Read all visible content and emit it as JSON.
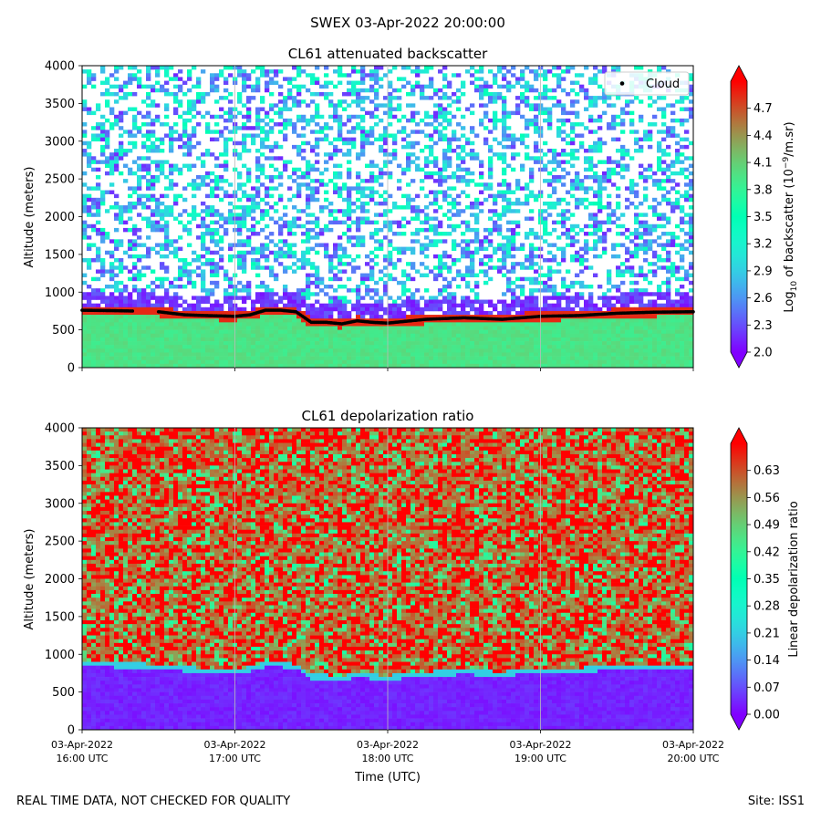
{
  "figure": {
    "suptitle": "SWEX 03-Apr-2022 20:00:00",
    "footer_left": "REAL TIME DATA, NOT CHECKED FOR QUALITY",
    "footer_right": "Site: ISS1"
  },
  "chart_data": [
    {
      "type": "heatmap",
      "title": "CL61 attenuated backscatter",
      "ylabel": "Altitude (meters)",
      "xlabel": "",
      "ylim": [
        0,
        4000
      ],
      "yticks": [
        0,
        500,
        1000,
        1500,
        2000,
        2500,
        3000,
        3500,
        4000
      ],
      "xlim_hours": [
        16,
        20
      ],
      "x_tick_hours": [
        16,
        17,
        18,
        19,
        20
      ],
      "x_tick_labels": [],
      "colorbar": {
        "label": "Log10 of backscatter (10^-9/m.sr)",
        "label_main": "Log",
        "label_sub": "10",
        "label_rest": " of backscatter (10",
        "label_sup": "−9",
        "label_end": "/m.sr)",
        "range": [
          2.0,
          5.0
        ],
        "ticks": [
          "2.0",
          "2.3",
          "2.6",
          "2.9",
          "3.2",
          "3.5",
          "3.8",
          "4.1",
          "4.4",
          "4.7"
        ],
        "colormap": "rainbow",
        "extend": "both"
      },
      "legend": {
        "label": "Cloud",
        "position": "top-right",
        "marker_color": "#000000"
      },
      "cloud_base": {
        "hours": [
          16.0,
          16.2,
          16.33,
          16.5,
          16.67,
          16.8,
          17.0,
          17.1,
          17.2,
          17.3,
          17.4,
          17.5,
          17.6,
          17.7,
          17.8,
          17.9,
          18.0,
          18.25,
          18.5,
          18.75,
          19.0,
          19.25,
          19.5,
          19.75,
          20.0
        ],
        "altitude_m": [
          760,
          755,
          750,
          740,
          700,
          690,
          680,
          700,
          760,
          760,
          740,
          600,
          600,
          580,
          620,
          600,
          590,
          640,
          660,
          640,
          680,
          690,
          720,
          735,
          740
        ]
      }
    },
    {
      "type": "heatmap",
      "title": "CL61 depolarization ratio",
      "ylabel": "Altitude (meters)",
      "xlabel": "Time (UTC)",
      "ylim": [
        0,
        4000
      ],
      "yticks": [
        0,
        500,
        1000,
        1500,
        2000,
        2500,
        3000,
        3500,
        4000
      ],
      "xlim_hours": [
        16,
        20
      ],
      "x_tick_hours": [
        16,
        17,
        18,
        19,
        20
      ],
      "x_tick_labels": [
        [
          "03-Apr-2022",
          "16:00 UTC"
        ],
        [
          "03-Apr-2022",
          "17:00 UTC"
        ],
        [
          "03-Apr-2022",
          "18:00 UTC"
        ],
        [
          "03-Apr-2022",
          "19:00 UTC"
        ],
        [
          "03-Apr-2022",
          "20:00 UTC"
        ]
      ],
      "colorbar": {
        "label": "Linear depolarization ratio",
        "range": [
          0.0,
          0.7
        ],
        "ticks": [
          "0.00",
          "0.07",
          "0.14",
          "0.21",
          "0.28",
          "0.35",
          "0.42",
          "0.49",
          "0.56",
          "0.63"
        ],
        "colormap": "rainbow",
        "extend": "both"
      }
    }
  ]
}
